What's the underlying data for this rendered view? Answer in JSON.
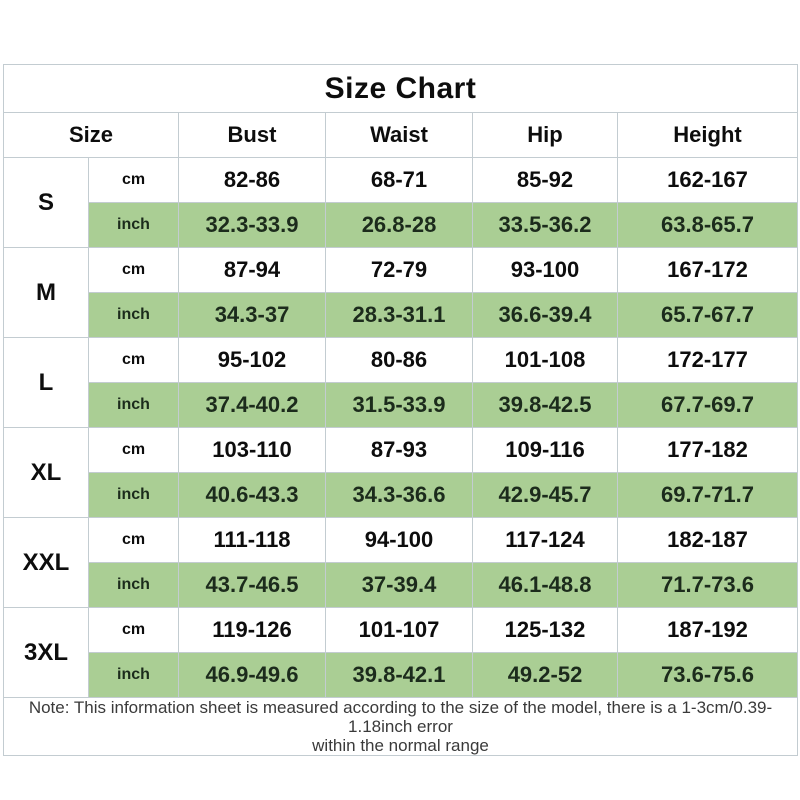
{
  "title": "Size Chart",
  "columns": [
    "Size",
    "Bust",
    "Waist",
    "Hip",
    "Height"
  ],
  "units": {
    "cm": "cm",
    "inch": "inch"
  },
  "sizes": [
    {
      "size": "S",
      "cm": [
        "82-86",
        "68-71",
        "85-92",
        "162-167"
      ],
      "inch": [
        "32.3-33.9",
        "26.8-28",
        "33.5-36.2",
        "63.8-65.7"
      ]
    },
    {
      "size": "M",
      "cm": [
        "87-94",
        "72-79",
        "93-100",
        "167-172"
      ],
      "inch": [
        "34.3-37",
        "28.3-31.1",
        "36.6-39.4",
        "65.7-67.7"
      ]
    },
    {
      "size": "L",
      "cm": [
        "95-102",
        "80-86",
        "101-108",
        "172-177"
      ],
      "inch": [
        "37.4-40.2",
        "31.5-33.9",
        "39.8-42.5",
        "67.7-69.7"
      ]
    },
    {
      "size": "XL",
      "cm": [
        "103-110",
        "87-93",
        "109-116",
        "177-182"
      ],
      "inch": [
        "40.6-43.3",
        "34.3-36.6",
        "42.9-45.7",
        "69.7-71.7"
      ]
    },
    {
      "size": "XXL",
      "cm": [
        "111-118",
        "94-100",
        "117-124",
        "182-187"
      ],
      "inch": [
        "43.7-46.5",
        "37-39.4",
        "46.1-48.8",
        "71.7-73.6"
      ]
    },
    {
      "size": "3XL",
      "cm": [
        "119-126",
        "101-107",
        "125-132",
        "187-192"
      ],
      "inch": [
        "46.9-49.6",
        "39.8-42.1",
        "49.2-52",
        "73.6-75.6"
      ]
    }
  ],
  "note": {
    "line1": "Note: This information sheet is measured according to the size of the model, there is a 1-3cm/0.39-1.18inch error",
    "line2": "within the normal range"
  },
  "colors": {
    "inch_row_bg": "#aace94",
    "border": "#c3ccd1",
    "text": "#0d0d0d",
    "inch_text": "#1c2b1c",
    "note_text": "#3a3a3a"
  }
}
